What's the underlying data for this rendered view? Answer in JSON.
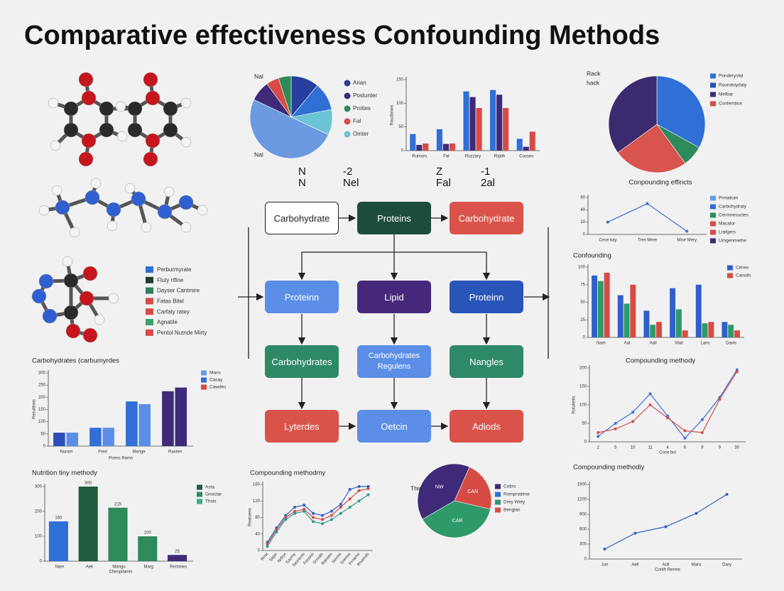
{
  "title": "Comparative effectiveness Confounding Methods",
  "floating_text": [
    "N",
    "-2",
    "Z",
    "-1",
    "N",
    "Nel",
    "Fal",
    "2al"
  ],
  "molecule_legend": [
    {
      "label": "Perburmyrate",
      "color": "#2f6fd6"
    },
    {
      "label": "Fluty rtfine",
      "color": "#1f3d2e"
    },
    {
      "label": "Dayser Cantmire",
      "color": "#2e7d5b"
    },
    {
      "label": "Fatas Bitel",
      "color": "#d64c45"
    },
    {
      "label": "Carfaty ratey",
      "color": "#d64c45"
    },
    {
      "label": "Agnatile",
      "color": "#3aa26a"
    },
    {
      "label": "Pentol Nutnde Mirty",
      "color": "#d64c45"
    }
  ],
  "flowchart": {
    "nodes": [
      {
        "label": "Carbohydrate",
        "color": "#ffffff"
      },
      {
        "label": "Proteins",
        "color": "#1d4d3a"
      },
      {
        "label": "Carbohydrate",
        "color": "#d9534a"
      },
      {
        "label": "Proteinn",
        "color": "#5b8ee6"
      },
      {
        "label": "Lipid",
        "color": "#45287a"
      },
      {
        "label": "Proteinn",
        "color": "#2a55b8"
      },
      {
        "label": "Carbohydrates",
        "color": "#2e8a66"
      },
      {
        "label": "Carbohydrates Regulens",
        "color": "#5b8ee6"
      },
      {
        "label": "Nangles",
        "color": "#2e8a66"
      },
      {
        "label": "Lyterdes",
        "color": "#d9534a"
      },
      {
        "label": "Oetcin",
        "color": "#5b8ee6"
      },
      {
        "label": "Adiods",
        "color": "#d9534a"
      }
    ]
  },
  "chart_data": [
    {
      "type": "pie",
      "annotations": [
        "Nal",
        "Nal"
      ],
      "values": [
        11,
        11,
        10,
        50,
        8,
        5,
        5
      ],
      "colors": [
        "#283e9e",
        "#2f6fd6",
        "#6cc3d5",
        "#6b9ae0",
        "#3e2a78",
        "#d64c45",
        "#2e8a5a"
      ],
      "legend": [
        {
          "name": "Arian",
          "color": "#2b3a8f"
        },
        {
          "name": "Postunter",
          "color": "#3e2a78"
        },
        {
          "name": "Proties",
          "color": "#2e8a5a"
        },
        {
          "name": "Fal",
          "color": "#d64c45"
        },
        {
          "name": "Omter",
          "color": "#6cc3d5"
        }
      ]
    },
    {
      "type": "bar",
      "ylabel": "Roudtirons",
      "categories": [
        "Rumors",
        "Fal",
        "Ruzzary",
        "Riptih",
        "Cosses"
      ],
      "series": [
        {
          "color": "#2f6fd6",
          "values": [
            35,
            45,
            125,
            128,
            25
          ]
        },
        {
          "color": "#3e2a78",
          "values": [
            12,
            14,
            113,
            118,
            8
          ]
        },
        {
          "color": "#d64c45",
          "values": [
            15,
            15,
            90,
            90,
            40
          ]
        }
      ],
      "ylim": [
        0,
        150
      ],
      "yticks": [
        0,
        50,
        100,
        150
      ]
    },
    {
      "type": "pie",
      "annotations": [
        "Rack",
        "hack"
      ],
      "values": [
        33,
        7,
        25,
        35
      ],
      "colors": [
        "#2f6fd6",
        "#2e8a5a",
        "#d9534f",
        "#3b2a6e"
      ],
      "legend": [
        {
          "name": "Ponderysfal",
          "color": "#2f6fd6"
        },
        {
          "name": "Roundsiydaty",
          "color": "#2a4fb0"
        },
        {
          "name": "Mefbar",
          "color": "#3e2a78"
        },
        {
          "name": "Confemtion",
          "color": "#d64c45"
        }
      ]
    },
    {
      "type": "line",
      "title": "Conpounding effincts",
      "categories": [
        "Cese kay",
        "Tres Mere",
        "Mise Mery"
      ],
      "series": [
        {
          "color": "#3a6fd8",
          "values": [
            20,
            50,
            5
          ]
        }
      ],
      "ylim": [
        0,
        60
      ],
      "yticks": [
        0,
        20,
        40,
        60
      ],
      "legend": [
        {
          "name": "Prmalium",
          "color": "#6b9ae0"
        },
        {
          "name": "Carbohydraty",
          "color": "#2f6fd6"
        },
        {
          "name": "Cermnesuctes",
          "color": "#2e8a5a"
        },
        {
          "name": "Macalor",
          "color": "#d64c45"
        },
        {
          "name": "Lrafgers",
          "color": "#d64c45"
        },
        {
          "name": "Umgenmethe",
          "color": "#3e2a78"
        }
      ]
    },
    {
      "type": "bar",
      "title": "Confounding",
      "categories": [
        "Nam",
        "Aal",
        "Aall",
        "Mail",
        "Lans",
        "Davis"
      ],
      "series": [
        {
          "color": "#2f5fc8",
          "values": [
            88,
            60,
            38,
            70,
            75,
            22
          ]
        },
        {
          "color": "#2e9a6a",
          "values": [
            80,
            48,
            18,
            40,
            20,
            18
          ]
        },
        {
          "color": "#d64c45",
          "values": [
            92,
            75,
            22,
            10,
            22,
            10
          ]
        }
      ],
      "ylim": [
        0,
        100
      ],
      "yticks": [
        0,
        25,
        50,
        75,
        100
      ],
      "legend": [
        {
          "name": "Cimes",
          "color": "#2f5fc8"
        },
        {
          "name": "Canolis",
          "color": "#d64c45"
        }
      ]
    },
    {
      "type": "line",
      "title": "Compounding methody",
      "xlabel": "Cose bol",
      "ylabel": "Rotulents",
      "categories": [
        "2",
        "5",
        "10",
        "11",
        "4",
        "6",
        "9",
        "9",
        "30"
      ],
      "series": [
        {
          "color": "#3a6fd8",
          "values": [
            15,
            50,
            80,
            130,
            70,
            10,
            60,
            120,
            195
          ]
        },
        {
          "color": "#d64c45",
          "values": [
            25,
            35,
            55,
            100,
            65,
            30,
            25,
            115,
            190
          ]
        }
      ],
      "ylim": [
        0,
        200
      ],
      "yticks": [
        0,
        50,
        100,
        150,
        200
      ]
    },
    {
      "type": "line",
      "title": "Compounding methodiy",
      "xlabel": "Conth Rerme",
      "categories": [
        "Jun",
        "Aell",
        "Aoll",
        "Maro",
        "Dary"
      ],
      "series": [
        {
          "color": "#2f5fc8",
          "values": [
            200,
            520,
            650,
            920,
            1300
          ]
        }
      ],
      "ylim": [
        0,
        1500
      ],
      "yticks": [
        0,
        300,
        600,
        900,
        1200,
        1500
      ]
    },
    {
      "type": "bar",
      "title": "Carbohydrates (carbumyrdes",
      "xlabel": "Poess Rams",
      "ylabel": "Resultions",
      "categories": [
        "Nuram",
        "Fred",
        "Mange",
        "Raxten"
      ],
      "series": [
        {
          "colors": [
            "#2b4fb8",
            "#2f6fd6",
            "#2f6fd6",
            "#3e2a78"
          ],
          "values": [
            55,
            75,
            183,
            225
          ]
        },
        {
          "colors": [
            "#5b8ee6",
            "#5b8ee6",
            "#5b8ee6",
            "#3e2a78"
          ],
          "values": [
            55,
            75,
            172,
            240
          ]
        }
      ],
      "ylim": [
        0,
        300
      ],
      "yticks": [
        0,
        50,
        100,
        150,
        200,
        250,
        300
      ],
      "legend": [
        {
          "name": "Mans",
          "color": "#6b9ae0"
        },
        {
          "name": "Casay",
          "color": "#2f6fd6"
        },
        {
          "name": "Cawdes",
          "color": "#d64c45"
        }
      ]
    },
    {
      "type": "bar",
      "title": "Nutrition tiny methody",
      "xlabel": "Cheopilamis",
      "show_values": true,
      "categories": [
        "Nam",
        "Aeil",
        "Mango",
        "Marg",
        "Remmes"
      ],
      "series": [
        {
          "colors": [
            "#2f6fd6",
            "#1f5a3c",
            "#2e8a5a",
            "#2e8a5a",
            "#3e2a78"
          ],
          "values": [
            160,
            300,
            215,
            100,
            25
          ]
        }
      ],
      "ylim": [
        0,
        300
      ],
      "yticks": [
        0,
        100,
        200,
        300
      ],
      "legend": [
        {
          "name": "Asta",
          "color": "#1f5a3c"
        },
        {
          "name": "Gnoctar",
          "color": "#2e8a5a"
        },
        {
          "name": "Thsls",
          "color": "#3aaa8a"
        }
      ]
    },
    {
      "type": "line",
      "title": "Compounding methodmy",
      "ylabel": "Reatuens",
      "categories": [
        "Rnst",
        "Sepn",
        "Nrfion",
        "Sazmy",
        "Sezrems",
        "Fensos",
        "Srmals",
        "Ranses",
        "Serms",
        "Srenos",
        "Frnams",
        "Roamds"
      ],
      "series": [
        {
          "color": "#2f5fc8",
          "values": [
            20,
            55,
            85,
            105,
            110,
            90,
            85,
            95,
            112,
            148,
            155,
            155
          ]
        },
        {
          "color": "#d64c45",
          "values": [
            15,
            50,
            80,
            95,
            100,
            80,
            75,
            85,
            105,
            125,
            145,
            150
          ]
        },
        {
          "color": "#2e9a8a",
          "values": [
            10,
            45,
            75,
            90,
            95,
            70,
            65,
            75,
            90,
            105,
            120,
            135
          ]
        }
      ],
      "ylim": [
        0,
        160
      ],
      "yticks": [
        0,
        40,
        80,
        120,
        160
      ]
    },
    {
      "type": "pie",
      "annotations": [
        "This"
      ],
      "categories": [
        "NW",
        "CAN",
        "CAR"
      ],
      "values": [
        40,
        22,
        38
      ],
      "colors": [
        "#3e2a78",
        "#d64c45",
        "#2e9a6a"
      ],
      "legend": [
        {
          "name": "Cotiro",
          "color": "#3e2a78"
        },
        {
          "name": "Rompnatime",
          "color": "#2f6fd6"
        },
        {
          "name": "Drey Wety",
          "color": "#2e9a6a"
        },
        {
          "name": "Benglas",
          "color": "#d64c45"
        }
      ]
    }
  ]
}
